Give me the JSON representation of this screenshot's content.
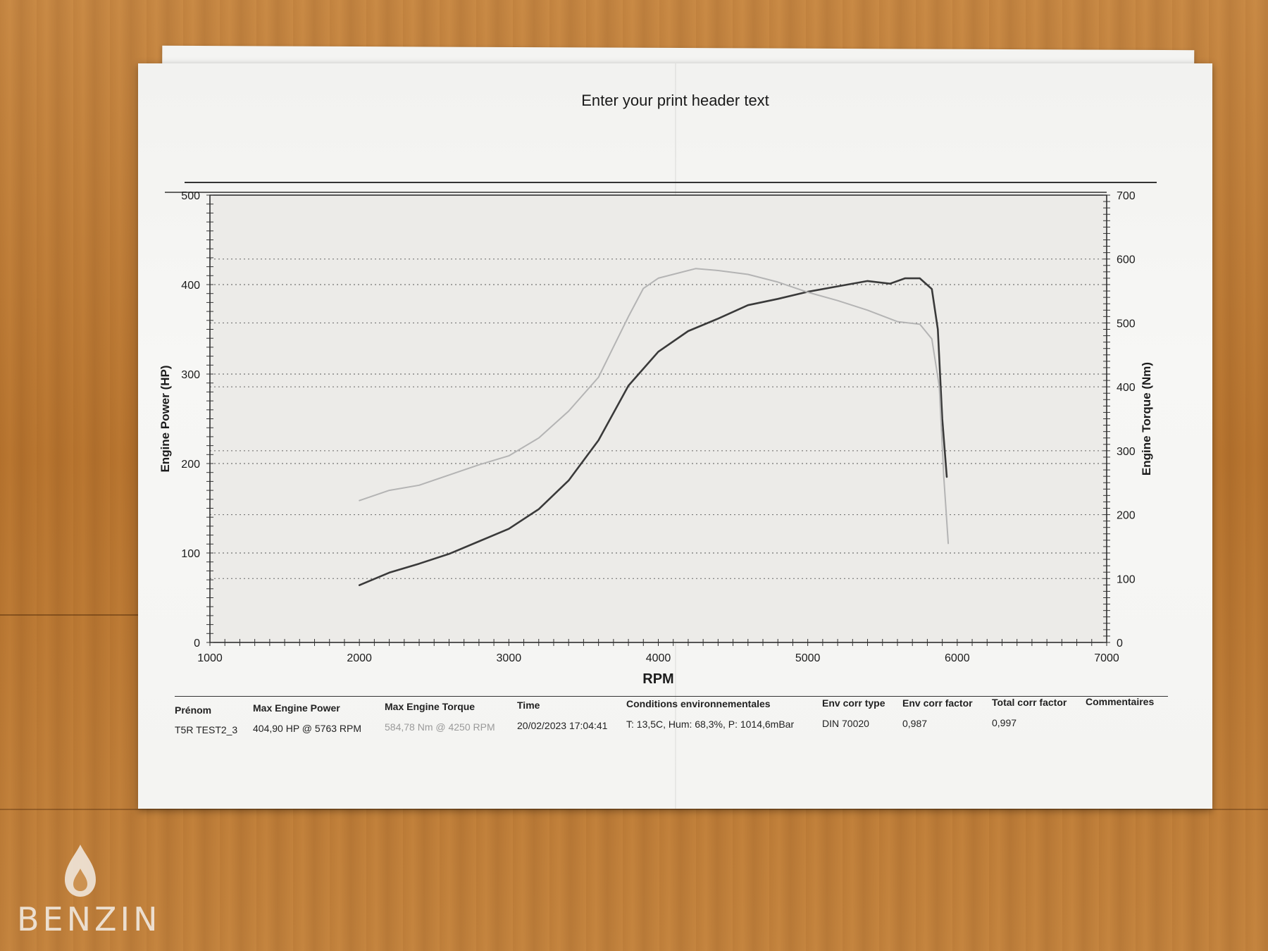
{
  "page": {
    "print_header": "Enter your print header text"
  },
  "chart_data": {
    "type": "line",
    "xlabel": "RPM",
    "ylabel": "Engine Power (HP)",
    "y2label": "Engine Torque (Nm)",
    "xlim": [
      1000,
      7000
    ],
    "ylim": [
      0,
      500
    ],
    "y2lim": [
      0,
      700
    ],
    "x_ticks": [
      "1000",
      "2000",
      "3000",
      "4000",
      "5000",
      "6000",
      "7000"
    ],
    "y_ticks": [
      "0",
      "100",
      "200",
      "300",
      "400",
      "500"
    ],
    "y2_ticks": [
      "0",
      "100",
      "200",
      "300",
      "400",
      "500",
      "600",
      "700"
    ],
    "grid": true,
    "series": [
      {
        "axis": "left",
        "color": "#3a3a3a",
        "x": [
          2000,
          2200,
          2400,
          2600,
          2800,
          3000,
          3200,
          3400,
          3600,
          3800,
          4000,
          4200,
          4400,
          4600,
          4800,
          5000,
          5200,
          5400,
          5550,
          5650,
          5750,
          5830,
          5870,
          5900,
          5930
        ],
        "y": [
          64,
          78,
          88,
          99,
          113,
          127,
          149,
          181,
          226,
          287,
          325,
          348,
          362,
          377,
          384,
          392,
          398,
          404,
          401,
          407,
          407,
          395,
          350,
          250,
          185
        ]
      },
      {
        "axis": "right",
        "color": "#b4b4b4",
        "x": [
          2000,
          2200,
          2400,
          2600,
          2800,
          3000,
          3200,
          3400,
          3600,
          3800,
          3900,
          4000,
          4250,
          4400,
          4600,
          4800,
          5000,
          5200,
          5400,
          5600,
          5750,
          5830,
          5880,
          5910,
          5940
        ],
        "y": [
          222,
          238,
          246,
          262,
          278,
          292,
          320,
          362,
          415,
          510,
          554,
          570,
          585,
          582,
          576,
          564,
          548,
          535,
          520,
          502,
          498,
          475,
          400,
          260,
          155
        ]
      }
    ]
  },
  "table": {
    "headers": [
      "Prénom",
      "Max Engine Power",
      "Max Engine Torque",
      "Time",
      "Conditions environnementales",
      "Env corr type",
      "Env corr factor",
      "Total corr factor",
      "Commentaires"
    ],
    "row": [
      "T5R TEST2_3",
      "404,90 HP @ 5763 RPM",
      "584,78 Nm @ 4250 RPM",
      "20/02/2023 17:04:41",
      "T: 13,5C, Hum: 68,3%, P: 1014,6mBar",
      "DIN 70020",
      "0,987",
      "0,997",
      ""
    ]
  },
  "logo": {
    "text": "BENZIN",
    "icon": "fuel-drop-icon"
  }
}
